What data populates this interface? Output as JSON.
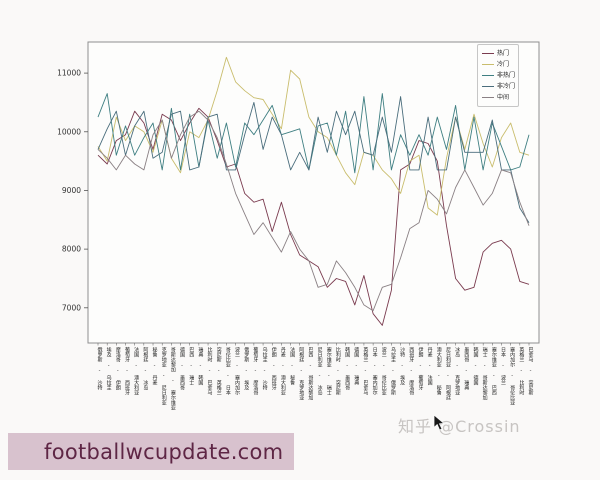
{
  "figure": {
    "background": "#faf9f8",
    "axes_background": "#fdfdfc",
    "spine_color": "#8f8f8f"
  },
  "watermark_banner": {
    "text": "footballwcupdate.com",
    "bg": "#d8c2ce",
    "fg": "#5e2645"
  },
  "watermark_social": {
    "text": "知乎 @Crossin"
  },
  "chart_data": {
    "type": "line",
    "title": "",
    "xlabel": "",
    "ylabel": "",
    "grid": false,
    "legend_position": "upper right",
    "ylim": [
      6400,
      11530
    ],
    "yticks": [
      7000,
      8000,
      9000,
      10000,
      11000
    ],
    "categories": [
      "俄罗斯 - 沙特",
      "埃及 - 乌拉圭",
      "摩洛哥 - 伊朗",
      "葡萄牙 - 西班牙",
      "法国 - 澳大利亚",
      "阿根廷 - 冰岛",
      "秘鲁 - 丹麦",
      "克罗地亚 - 尼日利亚",
      "哥斯达黎加 - 塞尔维亚",
      "德国 - 墨西哥",
      "巴西 - 瑞士",
      "瑞典 - 韩国",
      "比利时 - 巴拿马",
      "突尼斯 - 英格兰",
      "哥伦比亚 - 日本",
      "波兰 - 塞内加尔",
      "俄罗斯 - 埃及",
      "葡萄牙 - 摩洛哥",
      "乌拉圭 - 沙特",
      "伊朗 - 西班牙",
      "丹麦 - 澳大利亚",
      "法国 - 秘鲁",
      "阿根廷 - 克罗地亚",
      "巴西 - 哥斯达黎加",
      "尼日利亚 - 冰岛",
      "塞尔维亚 - 瑞士",
      "比利时 - 突尼斯",
      "韩国 - 墨西哥",
      "德国 - 瑞典",
      "英格兰 - 巴拿马",
      "日本 - 塞内加尔",
      "波兰 - 哥伦比亚",
      "乌拉圭 - 俄罗斯",
      "沙特 - 埃及",
      "西班牙 - 摩洛哥",
      "伊朗 - 葡萄牙",
      "丹麦 - 法国",
      "澳大利亚 - 秘鲁",
      "尼日利亚 - 阿根廷",
      "冰岛 - 克罗地亚",
      "墨西哥 - 瑞典",
      "韩国 - 德国",
      "瑞士 - 哥斯达黎加",
      "塞尔维亚 - 巴西",
      "日本 - 波兰",
      "塞内加尔 - 哥伦比亚",
      "英格兰 - 比利时",
      "巴拿马 - 突尼斯"
    ],
    "series": [
      {
        "id": "hot",
        "name": "热门",
        "color": "#7a3b4f",
        "values": [
          9600,
          9450,
          9850,
          9950,
          10350,
          10150,
          9700,
          10300,
          10200,
          9850,
          10150,
          10400,
          10250,
          9850,
          9400,
          9450,
          8950,
          8800,
          8850,
          8300,
          8800,
          8250,
          7900,
          7800,
          7700,
          7350,
          7500,
          7450,
          7050,
          7550,
          6900,
          6700,
          7300,
          9350,
          9450,
          9850,
          9800,
          9500,
          8400,
          7500,
          7300,
          7350,
          7950,
          8100,
          8150,
          8000,
          7450,
          7400
        ]
      },
      {
        "id": "cold",
        "name": "冷门",
        "color": "#c9bd6d",
        "values": [
          9750,
          9500,
          10250,
          9850,
          10100,
          10000,
          9650,
          10200,
          9550,
          9300,
          10000,
          9900,
          10200,
          10700,
          11270,
          10850,
          10700,
          10580,
          10550,
          10300,
          10050,
          11050,
          10900,
          10250,
          10000,
          9900,
          9600,
          9300,
          9100,
          9650,
          9600,
          9350,
          9200,
          8950,
          9500,
          9600,
          8700,
          8580,
          9550,
          10250,
          9700,
          10300,
          9800,
          9400,
          9900,
          10150,
          9650,
          9600
        ]
      },
      {
        "id": "non-hot",
        "name": "非热门",
        "color": "#3f7f82",
        "values": [
          10250,
          10650,
          9600,
          10100,
          9600,
          9900,
          10150,
          9350,
          10400,
          9350,
          10300,
          9400,
          10200,
          9550,
          10150,
          9400,
          10150,
          9950,
          10200,
          10450,
          9950,
          10000,
          10050,
          9350,
          10100,
          10150,
          9600,
          10350,
          9300,
          10600,
          9350,
          10650,
          9350,
          9950,
          9600,
          9950,
          9600,
          10250,
          9700,
          10450,
          9350,
          10250,
          9350,
          10150,
          9750,
          9350,
          9400,
          9950
        ]
      },
      {
        "id": "non-cold",
        "name": "非冷门",
        "color": "#4a6d7c",
        "values": [
          9700,
          10050,
          10350,
          9600,
          10100,
          10350,
          9550,
          9650,
          10300,
          10350,
          9350,
          9400,
          10250,
          10300,
          9350,
          9350,
          9950,
          10500,
          9700,
          10250,
          9950,
          9350,
          9650,
          9350,
          10250,
          9650,
          10350,
          9950,
          10350,
          9650,
          9600,
          10250,
          9650,
          10600,
          9350,
          9350,
          10250,
          9350,
          9350,
          10250,
          9650,
          9650,
          9650,
          10200,
          9350,
          9350,
          8700,
          8450
        ]
      },
      {
        "id": "middle",
        "name": "中间",
        "color": "#8a8084",
        "values": [
          9700,
          9550,
          9350,
          9600,
          9450,
          9350,
          9950,
          10200,
          9550,
          9950,
          10250,
          10350,
          10200,
          9900,
          9450,
          8950,
          8600,
          8250,
          8450,
          8200,
          7950,
          8300,
          8000,
          7800,
          7350,
          7400,
          7800,
          7600,
          7350,
          7050,
          6950,
          7350,
          7400,
          7850,
          8350,
          8450,
          9000,
          8850,
          8600,
          9050,
          9350,
          9050,
          8750,
          8950,
          9350,
          9300,
          8800,
          8400
        ]
      }
    ]
  }
}
